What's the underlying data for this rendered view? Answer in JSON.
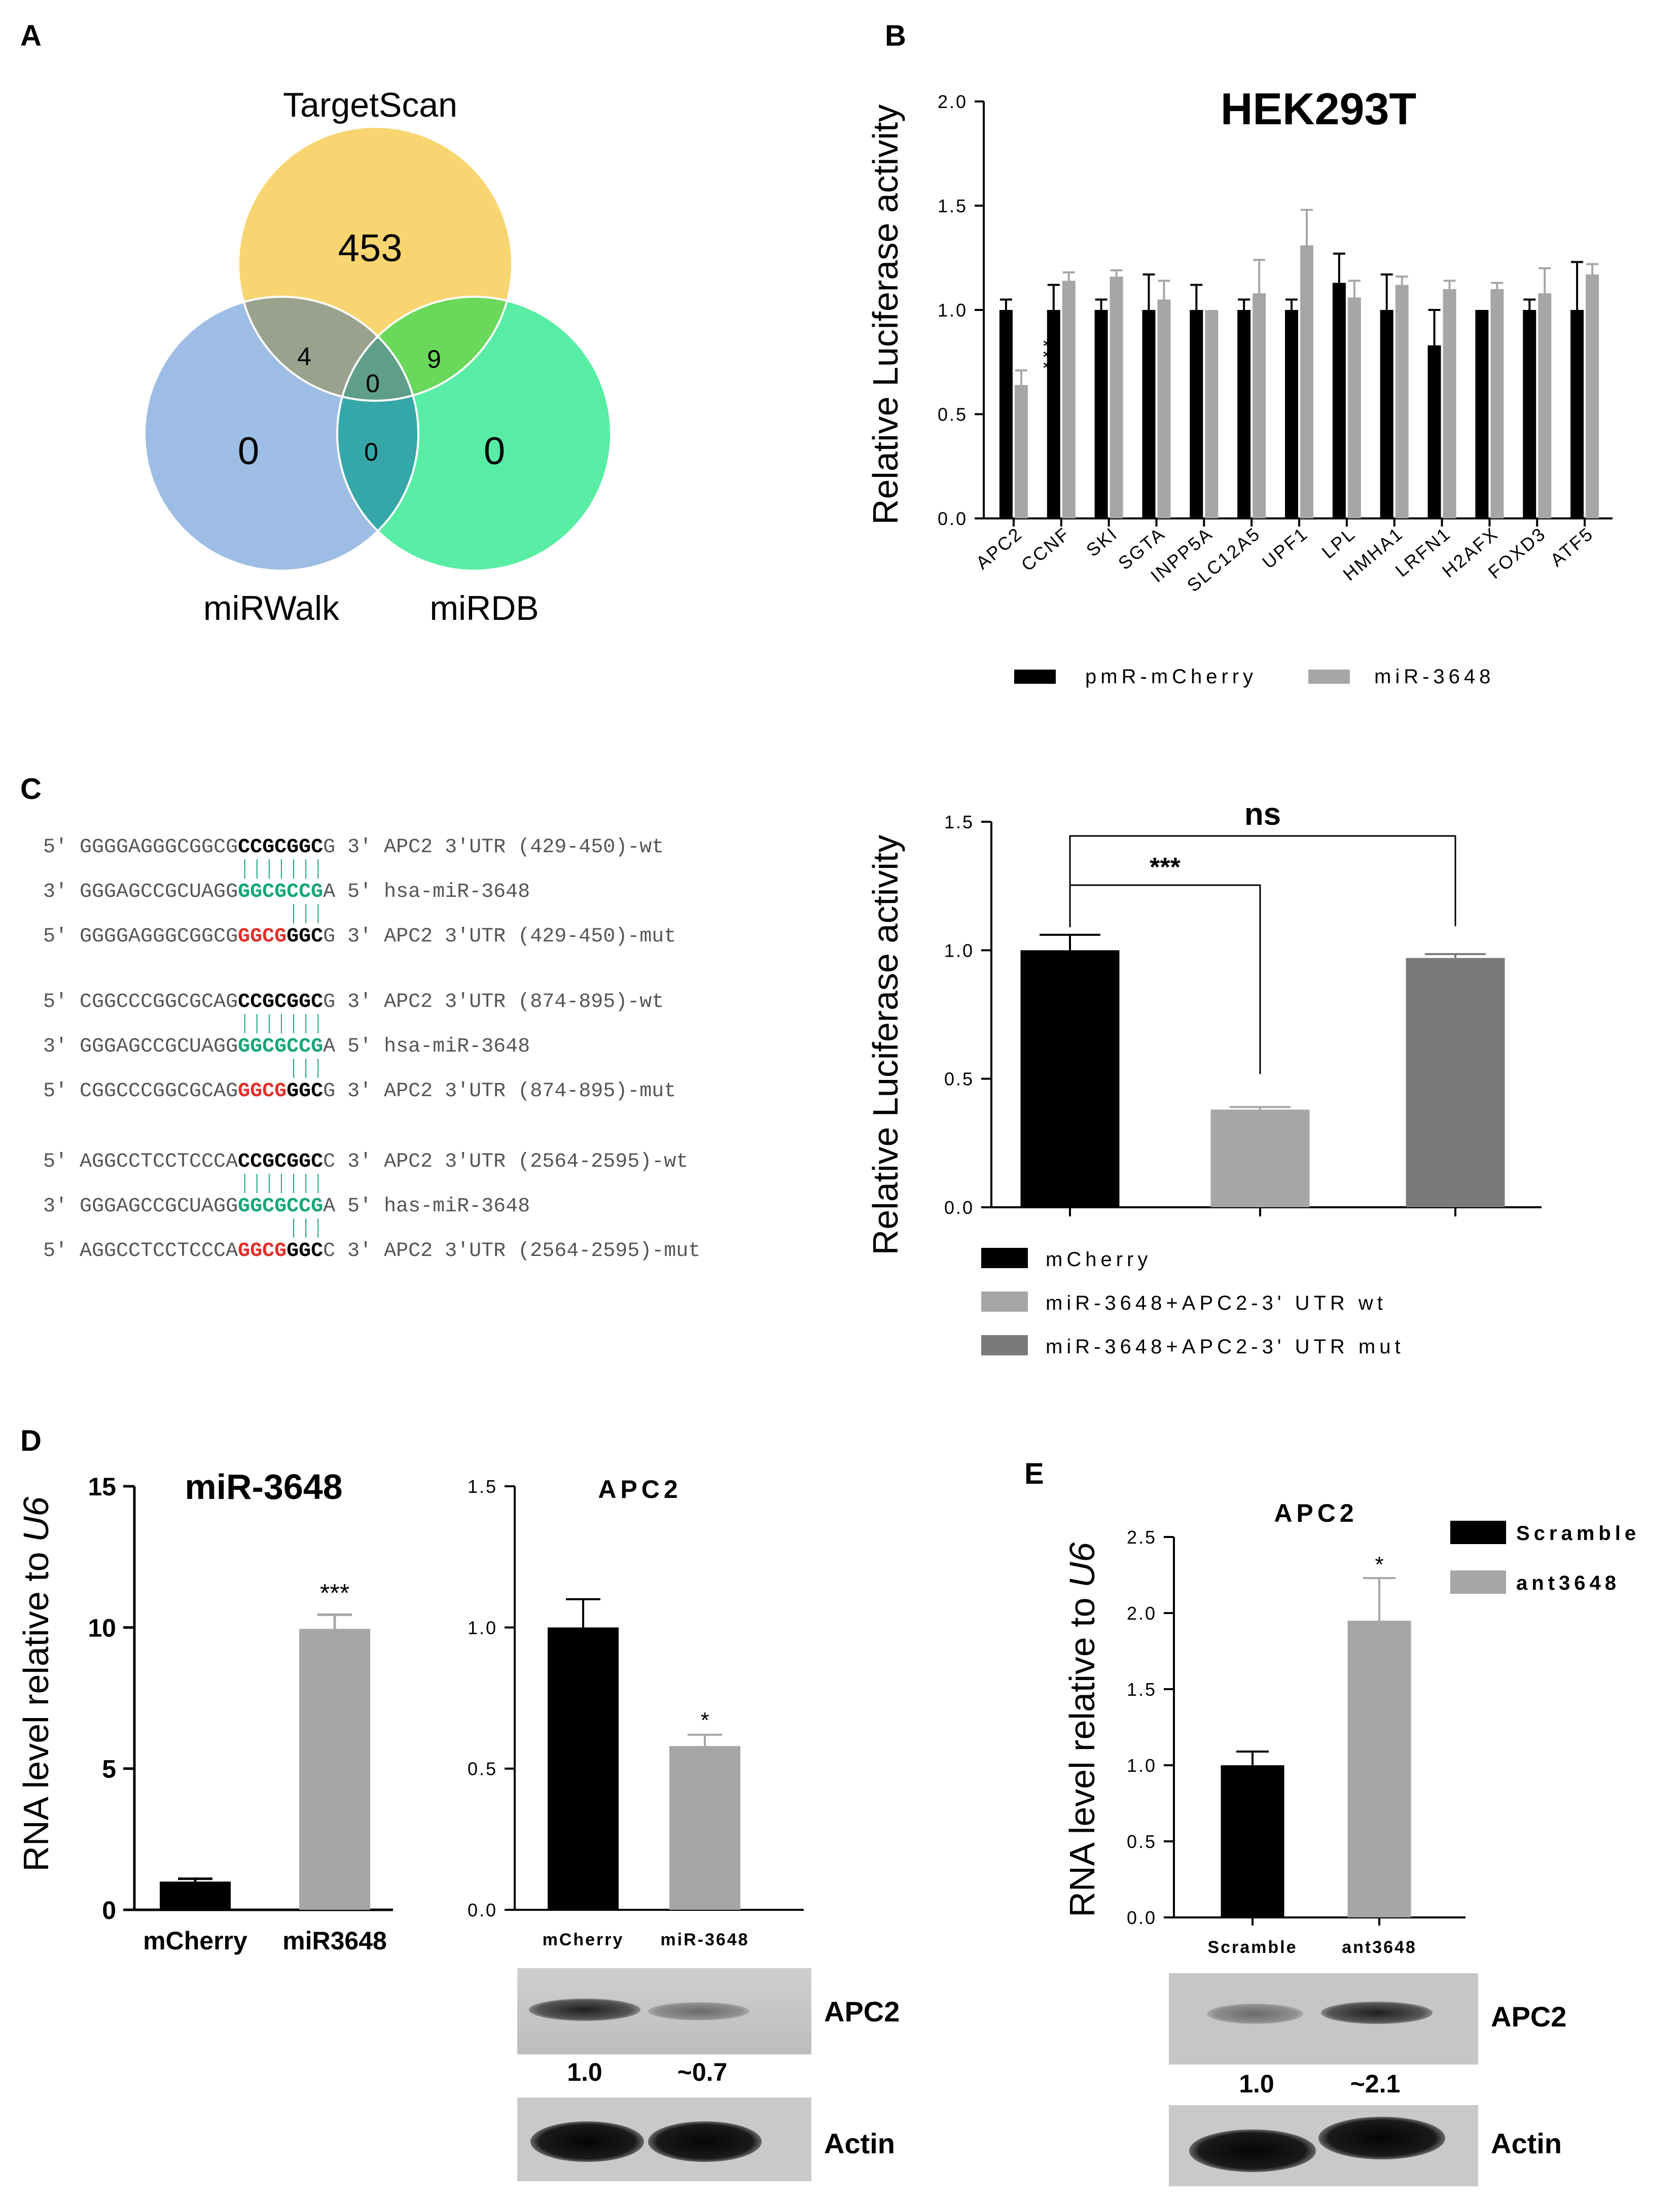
{
  "panels": {
    "A": {
      "letter": "A",
      "sets": [
        {
          "name": "TargetScan",
          "color": "#f9d571"
        },
        {
          "name": "miRWalk",
          "color": "#8eb2e0"
        },
        {
          "name": "miRDB",
          "color": "#3cea95"
        }
      ],
      "regions": {
        "targetscan_only": "453",
        "mirwalk_only": "0",
        "mirdb_only": "0",
        "targetscan_mirwalk": "4",
        "targetscan_mirdb": "9",
        "all_three": "0",
        "mirwalk_mirdb": "0"
      }
    },
    "B": {
      "letter": "B",
      "sig_label": "***"
    },
    "C": {
      "letter": "C",
      "alignments": [
        {
          "rows": [
            {
              "p5": "5'",
              "pre": "GGGGAGGGCGGCG",
              "core": "CCGCGGC",
              "post": "G",
              "p3": "3'",
              "label": "APC2 3'UTR (429-450)-wt",
              "kind": "wt"
            },
            {
              "p5": "3'",
              "pre": "GGGAGCCGCUAGG",
              "core": "GGCGCCG",
              "post": "A",
              "p3": "5'",
              "label": "hsa-miR-3648",
              "kind": "mir"
            },
            {
              "p5": "5'",
              "pre": "GGGGAGGGCGGCG",
              "core": "GGCG",
              "post": "GGCG",
              "p3": "3'",
              "label": "APC2 3'UTR (429-450)-mut",
              "kind": "mut"
            }
          ]
        },
        {
          "rows": [
            {
              "p5": "5'",
              "pre": "CGGCCCGGCGCAG",
              "core": "CCGCGGC",
              "post": "G",
              "p3": "3'",
              "label": "APC2 3'UTR (874-895)-wt",
              "kind": "wt"
            },
            {
              "p5": "3'",
              "pre": "GGGAGCCGCUAGG",
              "core": "GGCGCCG",
              "post": "A",
              "p3": "5'",
              "label": "hsa-miR-3648",
              "kind": "mir"
            },
            {
              "p5": "5'",
              "pre": "CGGCCCGGCGCAG",
              "core": "GGCG",
              "post": "GGCG",
              "p3": "3'",
              "label": "APC2 3'UTR (874-895)-mut",
              "kind": "mut"
            }
          ]
        },
        {
          "rows": [
            {
              "p5": "5'",
              "pre": "AGGCCTCCTCCCA",
              "core": "CCGCGGC",
              "post": "C",
              "p3": "3'",
              "label": "APC2 3'UTR (2564-2595)-wt",
              "kind": "wt"
            },
            {
              "p5": "3'",
              "pre": "GGGAGCCGCUAGG",
              "core": "GGCGCCG",
              "post": "A",
              "p3": "5'",
              "label": "has-miR-3648",
              "kind": "mir"
            },
            {
              "p5": "5'",
              "pre": "AGGCCTCCTCCCA",
              "core": "GGCG",
              "post": "GGCC",
              "p3": "3'",
              "label": "APC2 3'UTR (2564-2595)-mut",
              "kind": "mut"
            }
          ]
        }
      ],
      "sig_main": "***",
      "sig_ns": "ns"
    },
    "D": {
      "letter": "D"
    },
    "E": {
      "letter": "E"
    }
  },
  "blots": {
    "D": {
      "target": "APC2",
      "loading": "Actin",
      "quant": [
        "1.0",
        "~0.7"
      ]
    },
    "E": {
      "target": "APC2",
      "loading": "Actin",
      "quant": [
        "1.0",
        "~2.1"
      ]
    }
  },
  "chart_data": [
    {
      "id": "B",
      "type": "bar",
      "title": "HEK293T",
      "ylabel": "Relative Luciferase activity",
      "xlabel": "",
      "ylim": [
        0,
        2.0
      ],
      "yticks": [
        "0.0",
        "0.5",
        "1.0",
        "1.5",
        "2.0"
      ],
      "categories": [
        "APC2",
        "CCNF",
        "SKI",
        "SGTA",
        "INPP5A",
        "SLC12A5",
        "UPF1",
        "LPL",
        "HMHA1",
        "LRFN1",
        "H2AFX",
        "FOXD3",
        "ATF5"
      ],
      "series": [
        {
          "name": "pmR-mCherry",
          "color": "#000000",
          "values": [
            1.0,
            1.0,
            1.0,
            1.0,
            1.0,
            1.0,
            1.0,
            1.13,
            1.0,
            0.83,
            1.0,
            1.0,
            1.0
          ],
          "errors": [
            0.05,
            0.12,
            0.05,
            0.17,
            0.12,
            0.05,
            0.05,
            0.14,
            0.17,
            0.17,
            0.0,
            0.05,
            0.23
          ]
        },
        {
          "name": "miR-3648",
          "color": "#a6a6a8",
          "values": [
            0.64,
            1.14,
            1.16,
            1.05,
            1.0,
            1.08,
            1.31,
            1.06,
            1.12,
            1.1,
            1.1,
            1.08,
            1.17
          ],
          "errors": [
            0.07,
            0.04,
            0.03,
            0.09,
            0.0,
            0.16,
            0.17,
            0.08,
            0.04,
            0.04,
            0.03,
            0.12,
            0.05
          ]
        }
      ],
      "annotations": [
        {
          "category": "APC2",
          "series": "miR-3648",
          "text": "***"
        }
      ],
      "legend": "bottom"
    },
    {
      "id": "C",
      "type": "bar",
      "title": "",
      "ylabel": "Relative Luciferase activity",
      "xlabel": "",
      "ylim": [
        0,
        1.5
      ],
      "yticks": [
        "0.0",
        "0.5",
        "1.0",
        "1.5"
      ],
      "categories": [
        "mCherry",
        "miR-3648+APC2-3' UTR wt",
        "miR-3648+APC2-3' UTR mut"
      ],
      "values": [
        1.0,
        0.38,
        0.97
      ],
      "errors": [
        0.06,
        0.01,
        0.015
      ],
      "colors": [
        "#000000",
        "#a6a6a8",
        "#7a7a7a"
      ],
      "legend": "bottom-left"
    },
    {
      "id": "D1",
      "type": "bar",
      "title": "miR-3648",
      "ylabel": "RNA level relative to U6",
      "ylabel_parts": [
        "RNA level relative to ",
        "U6"
      ],
      "xlabel": "",
      "ylim": [
        0,
        15
      ],
      "yticks": [
        "0",
        "5",
        "10",
        "15"
      ],
      "categories": [
        "mCherry",
        "miR3648"
      ],
      "values": [
        1.0,
        9.95
      ],
      "errors": [
        0.1,
        0.5
      ],
      "colors": [
        "#000000",
        "#a6a6a8"
      ],
      "annotations": [
        {
          "category": "miR3648",
          "text": "***"
        }
      ]
    },
    {
      "id": "D2",
      "type": "bar",
      "title": "APC2",
      "ylabel": "",
      "xlabel": "",
      "ylim": [
        0,
        1.5
      ],
      "yticks": [
        "0.0",
        "0.5",
        "1.0",
        "1.5"
      ],
      "categories": [
        "mCherry",
        "miR-3648"
      ],
      "values": [
        1.0,
        0.58
      ],
      "errors": [
        0.1,
        0.04
      ],
      "colors": [
        "#000000",
        "#a6a6a8"
      ],
      "annotations": [
        {
          "category": "miR-3648",
          "text": "*"
        }
      ]
    },
    {
      "id": "E",
      "type": "bar",
      "title": "APC2",
      "ylabel": "RNA level relative to U6",
      "ylabel_parts": [
        "RNA level relative to ",
        "U6"
      ],
      "xlabel": "",
      "ylim": [
        0,
        2.5
      ],
      "yticks": [
        "0.0",
        "0.5",
        "1.0",
        "1.5",
        "2.0",
        "2.5"
      ],
      "categories": [
        "Scramble",
        "ant3648"
      ],
      "values": [
        1.0,
        1.95
      ],
      "errors": [
        0.09,
        0.28
      ],
      "colors": [
        "#000000",
        "#a6a6a8"
      ],
      "annotations": [
        {
          "category": "ant3648",
          "text": "*"
        }
      ],
      "legend": "top-right"
    }
  ]
}
